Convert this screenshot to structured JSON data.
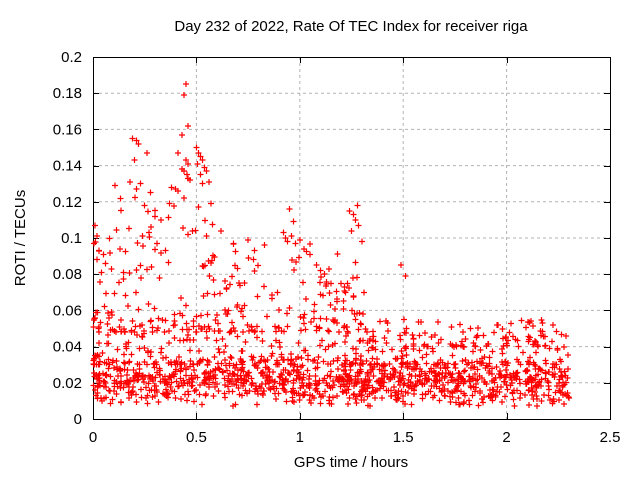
{
  "chart_data": {
    "type": "scatter",
    "title": "Day 232 of 2022, Rate Of TEC Index for receiver riga",
    "xlabel": "GPS time / hours",
    "ylabel": "ROTI / TECUs",
    "xlim": [
      0,
      2.5
    ],
    "ylim": [
      0,
      0.2
    ],
    "x_data_range": [
      0,
      2.31
    ],
    "grid": true,
    "legend": "none",
    "background": "#ffffff",
    "grid_color": "#b3b3b3",
    "axis_color": "#000000",
    "marker": {
      "glyph": "plus",
      "color": "#ff0000",
      "size": 7
    },
    "xticks": {
      "values": [
        0,
        0.5,
        1,
        1.5,
        2,
        2.5
      ],
      "labels": [
        "0",
        "0.5",
        "1",
        "1.5",
        "2",
        "2.5"
      ]
    },
    "yticks": {
      "values": [
        0,
        0.02,
        0.04,
        0.06,
        0.08,
        0.1,
        0.12,
        0.14,
        0.16,
        0.18,
        0.2
      ],
      "labels": [
        "0",
        "0.02",
        "0.04",
        "0.06",
        "0.08",
        "0.1",
        "0.12",
        "0.14",
        "0.16",
        "0.18",
        "0.2"
      ]
    },
    "outlier_points": [
      [
        0.01,
        0.107
      ],
      [
        0.02,
        0.101
      ],
      [
        0.005,
        0.097
      ],
      [
        0.03,
        0.093
      ],
      [
        0.05,
        0.091
      ],
      [
        0.02,
        0.088
      ],
      [
        0.06,
        0.086
      ],
      [
        0.13,
        0.094
      ],
      [
        0.09,
        0.083
      ],
      [
        0.04,
        0.081
      ],
      [
        0.19,
        0.155
      ],
      [
        0.21,
        0.154
      ],
      [
        0.22,
        0.152
      ],
      [
        0.26,
        0.147
      ],
      [
        0.2,
        0.143
      ],
      [
        0.18,
        0.131
      ],
      [
        0.23,
        0.13
      ],
      [
        0.21,
        0.127
      ],
      [
        0.25,
        0.118
      ],
      [
        0.27,
        0.103
      ],
      [
        0.3,
        0.112
      ],
      [
        0.33,
        0.11
      ],
      [
        0.28,
        0.106
      ],
      [
        0.24,
        0.101
      ],
      [
        0.31,
        0.097
      ],
      [
        0.35,
        0.093
      ],
      [
        0.45,
        0.185
      ],
      [
        0.44,
        0.179
      ],
      [
        0.46,
        0.162
      ],
      [
        0.43,
        0.157
      ],
      [
        0.41,
        0.147
      ],
      [
        0.45,
        0.143
      ],
      [
        0.46,
        0.141
      ],
      [
        0.43,
        0.138
      ],
      [
        0.44,
        0.137
      ],
      [
        0.455,
        0.135
      ],
      [
        0.46,
        0.133
      ],
      [
        0.47,
        0.132
      ],
      [
        0.4,
        0.127
      ],
      [
        0.38,
        0.128
      ],
      [
        0.41,
        0.126
      ],
      [
        0.44,
        0.122
      ],
      [
        0.37,
        0.119
      ],
      [
        0.5,
        0.15
      ],
      [
        0.51,
        0.147
      ],
      [
        0.52,
        0.145
      ],
      [
        0.53,
        0.143
      ],
      [
        0.505,
        0.141
      ],
      [
        0.54,
        0.139
      ],
      [
        0.55,
        0.137
      ],
      [
        0.52,
        0.135
      ],
      [
        0.56,
        0.131
      ],
      [
        0.53,
        0.13
      ],
      [
        0.57,
        0.119
      ],
      [
        0.51,
        0.117
      ],
      [
        0.48,
        0.104
      ],
      [
        0.55,
        0.101
      ],
      [
        0.62,
        0.104
      ],
      [
        0.68,
        0.097
      ],
      [
        0.75,
        0.099
      ],
      [
        0.78,
        0.093
      ],
      [
        0.83,
        0.096
      ],
      [
        0.92,
        0.103
      ],
      [
        0.93,
        0.1
      ],
      [
        0.95,
        0.116
      ],
      [
        0.94,
        0.098
      ],
      [
        0.96,
        0.101
      ],
      [
        0.97,
        0.109
      ],
      [
        0.98,
        0.097
      ],
      [
        1.0,
        0.099
      ],
      [
        1.02,
        0.094
      ],
      [
        1.05,
        0.091
      ],
      [
        1.08,
        0.085
      ],
      [
        1.1,
        0.082
      ],
      [
        1.12,
        0.08
      ],
      [
        1.14,
        0.083
      ],
      [
        1.24,
        0.115
      ],
      [
        1.26,
        0.113
      ],
      [
        1.27,
        0.11
      ],
      [
        1.25,
        0.104
      ],
      [
        1.28,
        0.118
      ],
      [
        1.285,
        0.107
      ],
      [
        1.3,
        0.098
      ],
      [
        1.49,
        0.085
      ],
      [
        1.51,
        0.079
      ],
      [
        1.2,
        0.075
      ],
      [
        1.22,
        0.07
      ],
      [
        1.26,
        0.068
      ],
      [
        1.18,
        0.065
      ]
    ],
    "cloud_model": {
      "seed": 7,
      "regions": [
        {
          "x": [
            0,
            2.31
          ],
          "y": [
            0.01,
            0.034
          ],
          "n": 900,
          "dist": "c"
        },
        {
          "x": [
            0,
            2.31
          ],
          "y": [
            0.03,
            0.05
          ],
          "n": 300,
          "dist": "b"
        },
        {
          "x": [
            0,
            2.31
          ],
          "y": [
            0.007,
            0.016
          ],
          "n": 130,
          "dist": "u"
        },
        {
          "x": [
            0,
            0.75
          ],
          "y": [
            0.048,
            0.078
          ],
          "n": 110,
          "dist": "b"
        },
        {
          "x": [
            0.75,
            1.33
          ],
          "y": [
            0.048,
            0.075
          ],
          "n": 70,
          "dist": "b"
        },
        {
          "x": [
            1.33,
            1.52
          ],
          "y": [
            0.042,
            0.06
          ],
          "n": 10,
          "dist": "u"
        },
        {
          "x": [
            1.45,
            2.31
          ],
          "y": [
            0.04,
            0.054
          ],
          "n": 45,
          "dist": "b"
        },
        {
          "x": [
            1.95,
            2.18
          ],
          "y": [
            0.044,
            0.056
          ],
          "n": 18,
          "dist": "u"
        },
        {
          "x": [
            0,
            0.35
          ],
          "y": [
            0.075,
            0.102
          ],
          "n": 18,
          "dist": "u"
        },
        {
          "x": [
            0.55,
            1.05
          ],
          "y": [
            0.075,
            0.097
          ],
          "n": 22,
          "dist": "u"
        },
        {
          "x": [
            1.08,
            1.32
          ],
          "y": [
            0.062,
            0.092
          ],
          "n": 16,
          "dist": "u"
        },
        {
          "x": [
            0.36,
            0.6
          ],
          "y": [
            0.078,
            0.118
          ],
          "n": 14,
          "dist": "u"
        },
        {
          "x": [
            0.1,
            0.34
          ],
          "y": [
            0.1,
            0.13
          ],
          "n": 10,
          "dist": "u"
        }
      ]
    }
  }
}
